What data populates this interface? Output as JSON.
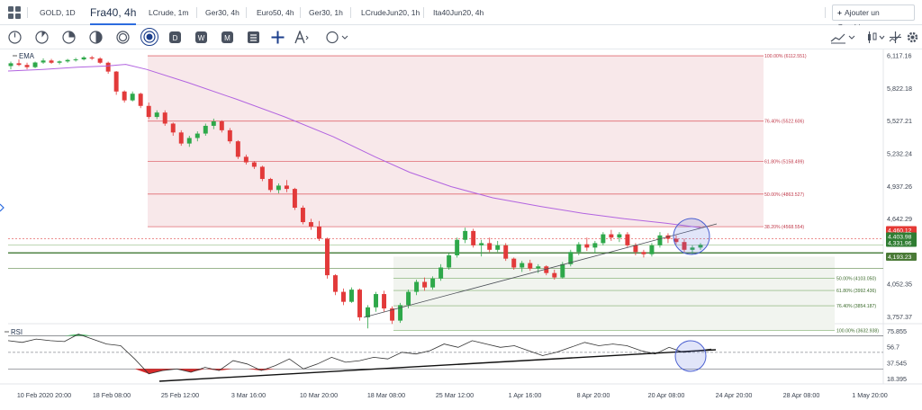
{
  "tabs": [
    {
      "label": "GOLD, 1D",
      "active": false
    },
    {
      "label": "Fra40, 4h",
      "active": true
    },
    {
      "label": "LCrude, 1m",
      "active": false
    },
    {
      "label": "Ger30, 4h",
      "active": false
    },
    {
      "label": "Euro50, 4h",
      "active": false
    },
    {
      "label": "Ger30, 1h",
      "active": false
    },
    {
      "label": "LCrudeJun20, 1h",
      "active": false
    },
    {
      "label": "Ita40Jun20, 4h",
      "active": false
    }
  ],
  "add_chart_label": "Ajouter un Graphique",
  "icons": {
    "timeframe": [
      "clock-1m-icon",
      "clock-5m-icon",
      "clock-15m-icon",
      "clock-30m-icon",
      "clock-1h-icon",
      "clock-4h-icon",
      "daily-icon",
      "weekly-icon",
      "monthly-icon"
    ],
    "tools": [
      "crosshair-icon",
      "drawing-tool-icon",
      "shape-tool-icon"
    ],
    "right": [
      "chart-type-icon",
      "candles-icon",
      "indicators-icon",
      "settings-icon"
    ]
  },
  "colors": {
    "up": "#2ea84a",
    "down": "#e23a3a",
    "ema": "#b264e0",
    "fib_upper_fill": "#f8e8ea",
    "fib_upper_line": "#e06a72",
    "fib_lower_fill": "#f1f4ef",
    "fib_lower_line": "#7cac6a",
    "rsi_line": "#333333",
    "rsi_overbought": "#28b046",
    "rsi_oversold": "#d62a2a",
    "highlight_circle": "#4a5fd0",
    "price_tag_red": "#e53935",
    "price_tag_green": "#2f7d32",
    "price_tag_dark_green": "#4a7a36",
    "support_line": "#2f6b22"
  },
  "chart_data": {
    "type": "candlestick",
    "symbol": "Fra40",
    "timeframe": "4h",
    "indicators": {
      "main": "EMA",
      "sub": "RSI"
    },
    "price_axis": {
      "ticks": [
        6117.16,
        5822.18,
        5527.21,
        5232.24,
        4937.26,
        4642.29,
        4052.35,
        3757.37
      ]
    },
    "x_axis": {
      "ticks": [
        "10 Feb 2020 20:00",
        "18 Feb 08:00",
        "25 Feb 12:00",
        "3 Mar 16:00",
        "10 Mar 20:00",
        "18 Mar 08:00",
        "25 Mar 12:00",
        "1 Apr 16:00",
        "8 Apr 20:00",
        "20 Apr 08:00",
        "24 Apr 20:00",
        "28 Apr 08:00",
        "1 May 20:00"
      ]
    },
    "price_tags": [
      {
        "value": "4,460.12",
        "color": "red"
      },
      {
        "value": "4,403.98",
        "color": "green"
      },
      {
        "value": "4,331.96",
        "color": "green"
      },
      {
        "value": "4,193.23",
        "color": "dark-green"
      }
    ],
    "fib_upper": [
      {
        "label": "100.00% (6112.551)",
        "price": 6112.551
      },
      {
        "label": "76.40% (5522.606)",
        "price": 5522.606
      },
      {
        "label": "61.80% (5158.499)",
        "price": 5158.499
      },
      {
        "label": "50.00% (4863.527)",
        "price": 4863.527
      },
      {
        "label": "38.20% (4568.554)",
        "price": 4568.554
      }
    ],
    "fib_lower": [
      {
        "label": "50.00% (4103.050)",
        "price": 4103.05
      },
      {
        "label": "61.80% (3992.436)",
        "price": 3992.436
      },
      {
        "label": "76.40% (3854.187)",
        "price": 3854.187
      },
      {
        "label": "100.00% (3632.938)",
        "price": 3632.938
      }
    ],
    "horizontal_levels": [
      4460.12,
      4403.98,
      4331.96,
      4193.23
    ],
    "rsi_axis": {
      "ticks": [
        75.855,
        56.7,
        37.545,
        18.395
      ]
    },
    "rsi_levels": {
      "overbought": 70,
      "oversold": 30,
      "mid": 50
    },
    "candles": [
      [
        6020,
        6060,
        5990,
        6045
      ],
      [
        6045,
        6080,
        6020,
        6030
      ],
      [
        6030,
        6050,
        5990,
        6010
      ],
      [
        6010,
        6060,
        6000,
        6052
      ],
      [
        6052,
        6090,
        6040,
        6070
      ],
      [
        6070,
        6085,
        6040,
        6050
      ],
      [
        6050,
        6070,
        6035,
        6062
      ],
      [
        6062,
        6085,
        6050,
        6075
      ],
      [
        6075,
        6095,
        6060,
        6080
      ],
      [
        6080,
        6110,
        6070,
        6098
      ],
      [
        6098,
        6112,
        6075,
        6088
      ],
      [
        6088,
        6100,
        6040,
        6050
      ],
      [
        6050,
        6060,
        5950,
        5970
      ],
      [
        5970,
        5975,
        5760,
        5790
      ],
      [
        5790,
        5800,
        5690,
        5710
      ],
      [
        5710,
        5790,
        5700,
        5770
      ],
      [
        5770,
        5780,
        5640,
        5660
      ],
      [
        5660,
        5690,
        5540,
        5560
      ],
      [
        5560,
        5620,
        5540,
        5600
      ],
      [
        5600,
        5620,
        5480,
        5500
      ],
      [
        5500,
        5510,
        5390,
        5420
      ],
      [
        5420,
        5440,
        5300,
        5320
      ],
      [
        5320,
        5390,
        5290,
        5370
      ],
      [
        5370,
        5430,
        5340,
        5410
      ],
      [
        5410,
        5500,
        5390,
        5480
      ],
      [
        5480,
        5545,
        5450,
        5520
      ],
      [
        5520,
        5530,
        5420,
        5440
      ],
      [
        5440,
        5460,
        5320,
        5340
      ],
      [
        5340,
        5350,
        5180,
        5200
      ],
      [
        5200,
        5220,
        5130,
        5150
      ],
      [
        5150,
        5160,
        5090,
        5110
      ],
      [
        5110,
        5120,
        4980,
        5000
      ],
      [
        5000,
        5010,
        4880,
        4900
      ],
      [
        4900,
        4960,
        4870,
        4940
      ],
      [
        4940,
        4990,
        4880,
        4910
      ],
      [
        4910,
        4920,
        4720,
        4740
      ],
      [
        4740,
        4760,
        4590,
        4610
      ],
      [
        4610,
        4640,
        4540,
        4570
      ],
      [
        4570,
        4620,
        4440,
        4460
      ],
      [
        4460,
        4470,
        4100,
        4130
      ],
      [
        4130,
        4140,
        3950,
        3980
      ],
      [
        3980,
        4010,
        3860,
        3890
      ],
      [
        3890,
        4020,
        3880,
        4000
      ],
      [
        4000,
        4010,
        3720,
        3750
      ],
      [
        3750,
        3860,
        3650,
        3840
      ],
      [
        3840,
        3980,
        3800,
        3960
      ],
      [
        3960,
        3990,
        3800,
        3830
      ],
      [
        3830,
        3850,
        3690,
        3720
      ],
      [
        3720,
        3880,
        3700,
        3860
      ],
      [
        3860,
        4000,
        3830,
        3980
      ],
      [
        3980,
        4090,
        3950,
        4070
      ],
      [
        4070,
        4110,
        3990,
        4020
      ],
      [
        4020,
        4120,
        4000,
        4100
      ],
      [
        4100,
        4230,
        4080,
        4200
      ],
      [
        4200,
        4330,
        4180,
        4310
      ],
      [
        4310,
        4470,
        4290,
        4450
      ],
      [
        4450,
        4560,
        4420,
        4530
      ],
      [
        4530,
        4550,
        4380,
        4400
      ],
      [
        4400,
        4450,
        4300,
        4420
      ],
      [
        4420,
        4470,
        4340,
        4360
      ],
      [
        4360,
        4440,
        4340,
        4400
      ],
      [
        4400,
        4420,
        4260,
        4280
      ],
      [
        4280,
        4290,
        4180,
        4200
      ],
      [
        4200,
        4260,
        4160,
        4240
      ],
      [
        4240,
        4270,
        4170,
        4190
      ],
      [
        4190,
        4230,
        4150,
        4210
      ],
      [
        4210,
        4220,
        4130,
        4150
      ],
      [
        4150,
        4180,
        4090,
        4110
      ],
      [
        4110,
        4250,
        4100,
        4230
      ],
      [
        4230,
        4360,
        4210,
        4340
      ],
      [
        4340,
        4430,
        4310,
        4410
      ],
      [
        4410,
        4470,
        4350,
        4380
      ],
      [
        4380,
        4440,
        4330,
        4420
      ],
      [
        4420,
        4520,
        4400,
        4500
      ],
      [
        4500,
        4540,
        4440,
        4470
      ],
      [
        4470,
        4520,
        4430,
        4500
      ],
      [
        4500,
        4520,
        4380,
        4400
      ],
      [
        4400,
        4420,
        4310,
        4340
      ],
      [
        4340,
        4360,
        4290,
        4320
      ],
      [
        4320,
        4420,
        4300,
        4400
      ],
      [
        4400,
        4520,
        4380,
        4490
      ],
      [
        4490,
        4510,
        4420,
        4460
      ],
      [
        4460,
        4490,
        4410,
        4430
      ],
      [
        4430,
        4460,
        4340,
        4360
      ],
      [
        4360,
        4400,
        4320,
        4380
      ],
      [
        4380,
        4420,
        4360,
        4404
      ]
    ],
    "ema": [
      [
        0,
        5975
      ],
      [
        0.05,
        5990
      ],
      [
        0.1,
        6010
      ],
      [
        0.14,
        6020
      ],
      [
        0.17,
        6035
      ],
      [
        0.2,
        5990
      ],
      [
        0.26,
        5870
      ],
      [
        0.33,
        5720
      ],
      [
        0.4,
        5560
      ],
      [
        0.47,
        5380
      ],
      [
        0.53,
        5200
      ],
      [
        0.58,
        5060
      ],
      [
        0.64,
        4930
      ],
      [
        0.7,
        4830
      ],
      [
        0.77,
        4750
      ],
      [
        0.83,
        4690
      ],
      [
        0.89,
        4640
      ],
      [
        0.95,
        4600
      ],
      [
        1,
        4560
      ]
    ],
    "rsi": [
      [
        0,
        64
      ],
      [
        0.02,
        62
      ],
      [
        0.04,
        66
      ],
      [
        0.06,
        64
      ],
      [
        0.08,
        63
      ],
      [
        0.1,
        72
      ],
      [
        0.12,
        66
      ],
      [
        0.14,
        60
      ],
      [
        0.16,
        58
      ],
      [
        0.18,
        42
      ],
      [
        0.2,
        24
      ],
      [
        0.22,
        28
      ],
      [
        0.24,
        30
      ],
      [
        0.26,
        26
      ],
      [
        0.28,
        32
      ],
      [
        0.3,
        28
      ],
      [
        0.32,
        40
      ],
      [
        0.34,
        36
      ],
      [
        0.36,
        28
      ],
      [
        0.38,
        34
      ],
      [
        0.4,
        42
      ],
      [
        0.42,
        30
      ],
      [
        0.44,
        36
      ],
      [
        0.46,
        44
      ],
      [
        0.48,
        38
      ],
      [
        0.5,
        40
      ],
      [
        0.52,
        44
      ],
      [
        0.54,
        42
      ],
      [
        0.56,
        50
      ],
      [
        0.58,
        48
      ],
      [
        0.6,
        52
      ],
      [
        0.62,
        60
      ],
      [
        0.64,
        56
      ],
      [
        0.66,
        64
      ],
      [
        0.68,
        60
      ],
      [
        0.7,
        56
      ],
      [
        0.72,
        58
      ],
      [
        0.74,
        52
      ],
      [
        0.76,
        46
      ],
      [
        0.78,
        50
      ],
      [
        0.8,
        56
      ],
      [
        0.82,
        62
      ],
      [
        0.84,
        58
      ],
      [
        0.86,
        60
      ],
      [
        0.88,
        58
      ],
      [
        0.9,
        52
      ],
      [
        0.92,
        48
      ],
      [
        0.94,
        56
      ],
      [
        0.96,
        50
      ],
      [
        0.98,
        52
      ],
      [
        1,
        54
      ]
    ]
  }
}
